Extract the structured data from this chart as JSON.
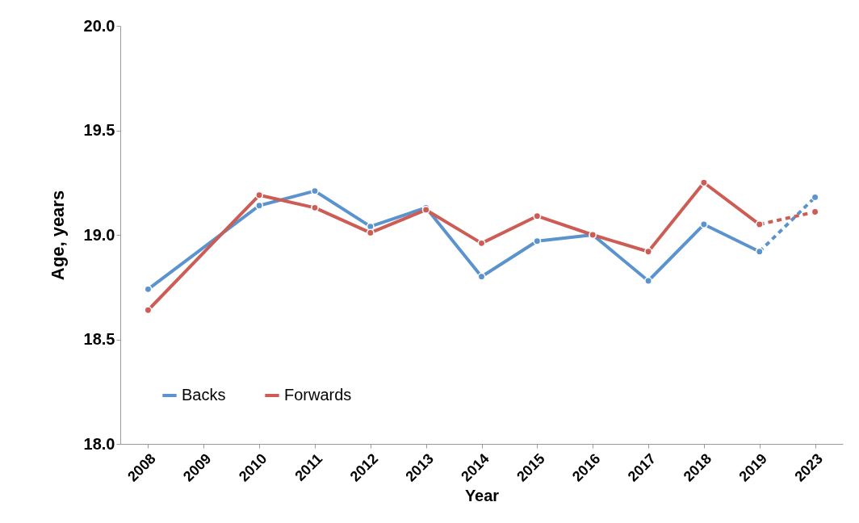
{
  "chart_data": {
    "type": "line",
    "xlabel": "Year",
    "ylabel": "Age, years",
    "categories": [
      "2008",
      "2009",
      "2010",
      "2011",
      "2012",
      "2013",
      "2014",
      "2015",
      "2016",
      "2017",
      "2018",
      "2019",
      "2023"
    ],
    "series": [
      {
        "name": "Backs",
        "color": "#5b93cf",
        "line_style": "solid",
        "values": [
          18.74,
          null,
          19.14,
          19.21,
          19.04,
          19.13,
          18.8,
          18.97,
          19.0,
          18.78,
          19.05,
          18.92,
          null
        ]
      },
      {
        "name": "Forwards",
        "color": "#cd5c55",
        "line_style": "solid",
        "values": [
          18.64,
          null,
          19.19,
          19.13,
          19.01,
          19.12,
          18.96,
          19.09,
          19.0,
          18.92,
          19.25,
          19.05,
          null
        ]
      },
      {
        "type": "line",
        "color": "#5b93cf",
        "line_style": "dashed",
        "values": [
          null,
          null,
          null,
          null,
          null,
          null,
          null,
          null,
          null,
          null,
          null,
          18.92,
          19.18
        ]
      },
      {
        "type": "line",
        "color": "#cd5c55",
        "line_style": "dashed",
        "values": [
          null,
          null,
          null,
          null,
          null,
          null,
          null,
          null,
          null,
          null,
          null,
          19.05,
          19.11
        ]
      }
    ],
    "ylim": [
      18.0,
      20.0
    ],
    "yticks": [
      {
        "value": 18,
        "label": "18.0"
      },
      {
        "value": 18.5,
        "label": "18.5"
      },
      {
        "value": 19,
        "label": "19.0"
      },
      {
        "value": 19.5,
        "label": "19.5"
      },
      {
        "value": 20,
        "label": "20.0"
      }
    ],
    "grid": false,
    "legend": "bottom left",
    "marker": "circle"
  }
}
